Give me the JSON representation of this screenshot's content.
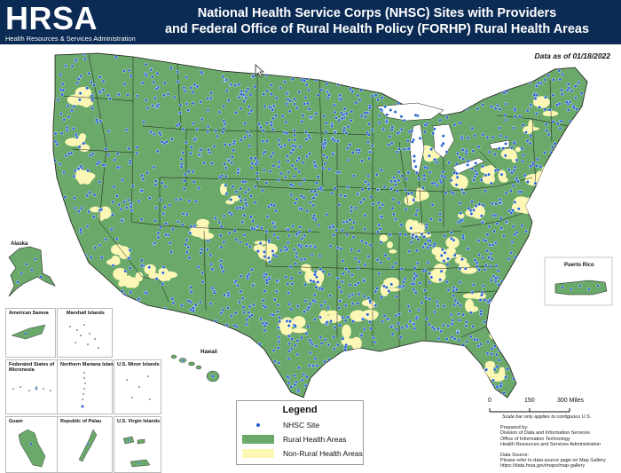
{
  "header": {
    "logo_text": "HRSA",
    "logo_subtitle": "Health Resources & Services Administration",
    "title_line1": "National Health Service Corps (NHSC) Sites with Providers",
    "title_line2": "and Federal Office of Rural Health Policy (FORHP) Rural Health Areas"
  },
  "date_note": "Data as of 01/18/2022",
  "map_labels": {
    "alaska": "Alaska",
    "hawaii": "Hawaii",
    "puerto_rico": "Puerto Rico"
  },
  "insets": [
    {
      "id": "american-samoa",
      "label": "American Samoa"
    },
    {
      "id": "marshall-islands",
      "label": "Marshall Islands"
    },
    {
      "id": "micronesia",
      "label": "Federated States of Micronesia"
    },
    {
      "id": "northern-mariana",
      "label": "Northern Mariana Islands"
    },
    {
      "id": "us-minor",
      "label": "U.S. Minor Islands"
    },
    {
      "id": "guam",
      "label": "Guam"
    },
    {
      "id": "palau",
      "label": "Republic of Palau"
    },
    {
      "id": "virgin-islands",
      "label": "U.S. Virgin Islands"
    }
  ],
  "legend": {
    "title": "Legend",
    "items": [
      {
        "label": "NHSC Site",
        "symbol": "dot",
        "color": "#1f5fcf"
      },
      {
        "label": "Rural Health Areas",
        "symbol": "fill",
        "color": "#6aa96a"
      },
      {
        "label": "Non-Rural Health Areas",
        "symbol": "fill",
        "color": "#fdf7b5"
      }
    ]
  },
  "scale": {
    "ticks": [
      "0",
      "150",
      "300 Miles"
    ],
    "note": "Scale bar only applies to contiguous U.S."
  },
  "credits": {
    "prepared_by_label": "Prepared by:",
    "prepared_lines": [
      "Division of Data and Information Services",
      "Office of Information Technology",
      "Health Resources and Services Administration"
    ],
    "source_label": "Data Source:",
    "source_lines": [
      "Please refer to data source page on Map Gallery",
      "https://data.hrsa.gov/maps/map-gallery"
    ]
  },
  "colors": {
    "rural": "#6aa96a",
    "non_rural": "#fdf7b5",
    "site": "#1f5fcf",
    "header_bg": "#0b2a54",
    "border": "#1c1c1c"
  }
}
